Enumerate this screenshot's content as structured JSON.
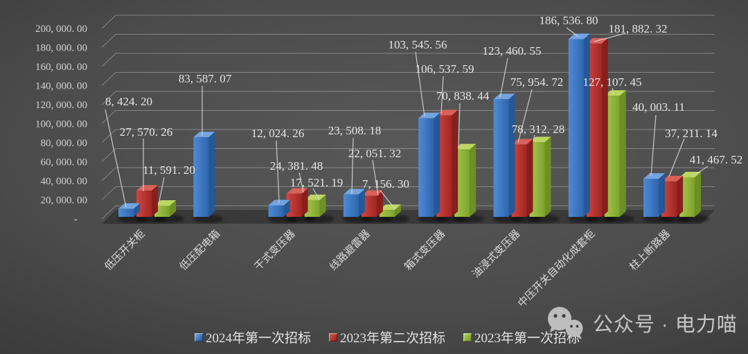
{
  "watermark": {
    "text": "公众号 · 电力喵",
    "icon": "wechat-icon"
  },
  "chart_data": {
    "type": "bar",
    "variant": "3d-clustered-column",
    "title": "",
    "xlabel": "",
    "ylabel": "",
    "grid": true,
    "legend_position": "bottom",
    "ylim": [
      0,
      200000
    ],
    "ytick_step": 20000,
    "zero_tick_label": "-",
    "background": "dark-gray-gradient",
    "categories": [
      "低压开关柜",
      "低压配电箱",
      "干式变压器",
      "线路避雷器",
      "箱式变压器",
      "油浸式变压器",
      "中压开关自动化成套柜",
      "柱上断路器"
    ],
    "series": [
      {
        "name": "2024年第一次招标",
        "colors": {
          "front1": "#4e8ad3",
          "front2": "#2e66ae",
          "top": "#74a4e0",
          "side": "#255899"
        },
        "values": [
          8424.2,
          83587.07,
          12024.26,
          23508.18,
          103545.56,
          123460.55,
          186536.8,
          40003.11
        ]
      },
      {
        "name": "2023年第二次招标",
        "colors": {
          "front1": "#cf4540",
          "front2": "#a02723",
          "top": "#d8615a",
          "side": "#8a1e1b"
        },
        "values": [
          27570.26,
          null,
          24381.48,
          22051.32,
          106537.59,
          75954.72,
          181882.32,
          37211.14
        ]
      },
      {
        "name": "2023年第一次招标",
        "colors": {
          "front1": "#a6c84d",
          "front2": "#7ea32c",
          "top": "#bcd763",
          "side": "#6c9023"
        },
        "values": [
          11591.2,
          null,
          17521.19,
          7156.3,
          70838.44,
          78312.28,
          127107.45,
          41467.52
        ]
      }
    ],
    "label_layout": [
      [
        [
          186,
          146,
          152,
          158,
          182,
          299
        ],
        [
          211,
          190,
          207,
          200,
          207,
          276
        ],
        [
          244,
          245,
          237,
          256,
          229,
          295
        ]
      ],
      [
        [
          296,
          113,
          292,
          124,
          292,
          196
        ],
        null,
        null
      ],
      [
        [
          401,
          192,
          399,
          203,
          403,
          293
        ],
        [
          428,
          239,
          432,
          249,
          438,
          278
        ],
        [
          457,
          263,
          452,
          272,
          461,
          288
        ]
      ],
      [
        [
          512,
          188,
          510,
          199,
          508,
          280
        ],
        [
          541,
          221,
          538,
          231,
          546,
          282
        ],
        [
          557,
          265,
          549,
          275,
          570,
          301
        ]
      ],
      [
        [
          603,
          64,
          600,
          75,
          613,
          168
        ],
        [
          642,
          99,
          640,
          110,
          637,
          164
        ],
        [
          668,
          138,
          664,
          149,
          662,
          213
        ]
      ],
      [
        [
          739,
          73,
          733,
          84,
          722,
          141
        ],
        [
          775,
          118,
          768,
          129,
          748,
          206
        ],
        [
          777,
          186,
          772,
          195,
          770,
          203
        ]
      ],
      [
        [
          821,
          29,
          818,
          40,
          835,
          53
        ],
        [
          921,
          41,
          903,
          48,
          858,
          60
        ],
        [
          884,
          118,
          884,
          127,
          886,
          134
        ]
      ],
      [
        [
          951,
          154,
          947,
          166,
          940,
          254
        ],
        [
          998,
          192,
          988,
          200,
          966,
          255
        ],
        [
          1034,
          230,
          1022,
          240,
          1004,
          252
        ]
      ]
    ]
  }
}
